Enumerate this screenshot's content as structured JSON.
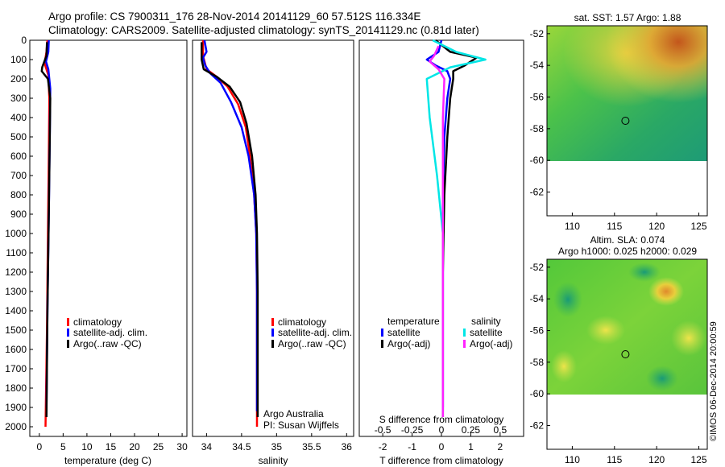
{
  "title": {
    "line1": "Argo profile: CS 7900311_176 28-Nov-2014 20141129_60 57.512S 116.334E",
    "line2": "Climatology: CARS2009. Satellite-adjusted climatology: synTS_20141129.nc (0.81d later)"
  },
  "credit": "©IMOS 06-Dec-2014 20:00:59",
  "colors": {
    "climatology": "#ff0000",
    "satellite_adj": "#0000ff",
    "argo": "#000000",
    "satellite_S": "#00e6e6",
    "argo_S": "#ff22ff"
  },
  "chart_data": [
    {
      "type": "line",
      "xlabel": "temperature (deg C)",
      "ylabel": "",
      "xlim": [
        -2,
        31
      ],
      "ylim": [
        2050,
        0
      ],
      "xticks": [
        0,
        5,
        10,
        15,
        20,
        25,
        30
      ],
      "yticks": [
        0,
        100,
        200,
        300,
        400,
        500,
        600,
        700,
        800,
        900,
        1000,
        1100,
        1200,
        1300,
        1400,
        1500,
        1600,
        1700,
        1800,
        1900,
        2000
      ],
      "series": [
        {
          "name": "climatology",
          "color": "#ff0000",
          "points": [
            [
              1.7,
              0
            ],
            [
              1.5,
              60
            ],
            [
              1.1,
              120
            ],
            [
              1.9,
              180
            ],
            [
              2.1,
              300
            ],
            [
              2.0,
              600
            ],
            [
              1.8,
              1000
            ],
            [
              1.6,
              1500
            ],
            [
              1.3,
              2000
            ]
          ]
        },
        {
          "name": "satellite-adj. clim.",
          "color": "#0000ff",
          "points": [
            [
              2.0,
              0
            ],
            [
              1.9,
              60
            ],
            [
              1.4,
              110
            ],
            [
              1.9,
              150
            ],
            [
              2.3,
              250
            ],
            [
              2.2,
              500
            ],
            [
              2.0,
              900
            ],
            [
              1.7,
              1400
            ],
            [
              1.5,
              1900
            ]
          ]
        },
        {
          "name": "Argo(..raw -QC)",
          "color": "#000000",
          "points": [
            [
              1.6,
              10
            ],
            [
              1.5,
              80
            ],
            [
              0.6,
              140
            ],
            [
              0.5,
              160
            ],
            [
              1.8,
              200
            ],
            [
              2.3,
              300
            ],
            [
              2.2,
              500
            ],
            [
              2.0,
              900
            ],
            [
              1.7,
              1400
            ],
            [
              1.5,
              1950
            ]
          ]
        }
      ],
      "legend": [
        "climatology",
        "satellite-adj. clim.",
        "Argo(..raw -QC)"
      ],
      "legend_position": "lower-right"
    },
    {
      "type": "line",
      "xlabel": "salinity",
      "ylabel": "",
      "xlim": [
        33.8,
        36.1
      ],
      "ylim": [
        2050,
        0
      ],
      "xticks": [
        34,
        34.5,
        35,
        35.5,
        36
      ],
      "xticklabels": [
        "34",
        "34.5",
        "35",
        "35.5",
        "36"
      ],
      "series": [
        {
          "name": "climatology",
          "color": "#ff0000",
          "points": [
            [
              33.95,
              0
            ],
            [
              33.95,
              80
            ],
            [
              34.0,
              150
            ],
            [
              34.15,
              190
            ],
            [
              34.3,
              240
            ],
            [
              34.45,
              330
            ],
            [
              34.56,
              450
            ],
            [
              34.62,
              600
            ],
            [
              34.68,
              800
            ],
            [
              34.71,
              1000
            ],
            [
              34.72,
              1300
            ],
            [
              34.72,
              1600
            ],
            [
              34.72,
              2000
            ]
          ]
        },
        {
          "name": "satellite-adj. clim.",
          "color": "#0000ff",
          "points": [
            [
              33.97,
              0
            ],
            [
              34.0,
              60
            ],
            [
              33.95,
              90
            ],
            [
              33.98,
              130
            ],
            [
              34.05,
              170
            ],
            [
              34.2,
              220
            ],
            [
              34.35,
              320
            ],
            [
              34.5,
              450
            ],
            [
              34.6,
              600
            ],
            [
              34.68,
              800
            ],
            [
              34.71,
              1000
            ],
            [
              34.72,
              1300
            ],
            [
              34.72,
              1600
            ],
            [
              34.72,
              1920
            ]
          ]
        },
        {
          "name": "Argo(..raw -QC)",
          "color": "#000000",
          "points": [
            [
              33.93,
              10
            ],
            [
              33.93,
              100
            ],
            [
              33.96,
              150
            ],
            [
              34.15,
              190
            ],
            [
              34.33,
              240
            ],
            [
              34.48,
              320
            ],
            [
              34.57,
              430
            ],
            [
              34.65,
              600
            ],
            [
              34.7,
              800
            ],
            [
              34.72,
              1000
            ],
            [
              34.73,
              1300
            ],
            [
              34.73,
              1600
            ],
            [
              34.73,
              1950
            ]
          ]
        }
      ],
      "legend": [
        "climatology",
        "satellite-adj. clim.",
        "Argo(..raw -QC)"
      ],
      "legend_position": "lower-right",
      "annotation": [
        "Argo Australia",
        "PI: Susan Wijffels"
      ]
    },
    {
      "type": "line",
      "xlabel": "T difference from climatology",
      "top_label": "S difference from climatology",
      "xlim": [
        -2.8,
        2.8
      ],
      "ylim": [
        2050,
        0
      ],
      "xticks": [
        -2,
        -1,
        0,
        1,
        2
      ],
      "top_ticks": [
        "-0.5",
        "-0.25",
        "0",
        "0.25",
        "0.5"
      ],
      "series": [
        {
          "name": "temperature satellite",
          "color": "#0000ff",
          "points": [
            [
              0,
              0
            ],
            [
              -0.1,
              60
            ],
            [
              -0.5,
              100
            ],
            [
              -0.2,
              130
            ],
            [
              0.2,
              160
            ],
            [
              0.3,
              200
            ],
            [
              0.2,
              300
            ],
            [
              0.1,
              500
            ],
            [
              0.05,
              800
            ],
            [
              0.05,
              1200
            ],
            [
              0.05,
              1600
            ],
            [
              0.05,
              1900
            ]
          ]
        },
        {
          "name": "temperature Argo(-adj)",
          "color": "#000000",
          "points": [
            [
              -0.2,
              0
            ],
            [
              0.3,
              60
            ],
            [
              1.2,
              90
            ],
            [
              0.8,
              130
            ],
            [
              0.4,
              160
            ],
            [
              0.4,
              200
            ],
            [
              0.3,
              300
            ],
            [
              0.2,
              500
            ],
            [
              0.1,
              800
            ],
            [
              0.05,
              1200
            ],
            [
              0.05,
              1600
            ],
            [
              0.05,
              1950
            ]
          ]
        },
        {
          "name": "salinity satellite",
          "color": "#00e6e6",
          "points": [
            [
              -0.3,
              0
            ],
            [
              0.5,
              60
            ],
            [
              1.5,
              100
            ],
            [
              0.3,
              140
            ],
            [
              -0.5,
              200
            ],
            [
              -0.4,
              400
            ],
            [
              -0.15,
              700
            ],
            [
              0.05,
              1000
            ],
            [
              0.05,
              1300
            ],
            [
              0.05,
              1600
            ],
            [
              0.05,
              1920
            ]
          ]
        },
        {
          "name": "salinity Argo(-adj)",
          "color": "#ff22ff",
          "points": [
            [
              -0.1,
              30
            ],
            [
              -0.25,
              80
            ],
            [
              -0.4,
              110
            ],
            [
              -0.1,
              150
            ],
            [
              0.1,
              200
            ],
            [
              0.05,
              400
            ],
            [
              0.05,
              700
            ],
            [
              0.05,
              1000
            ],
            [
              0.05,
              1300
            ],
            [
              0.05,
              1600
            ],
            [
              0.05,
              1950
            ]
          ]
        }
      ],
      "legend_titles": [
        "temperature",
        "salinity"
      ],
      "legend": [
        "satellite",
        "Argo(-adj)",
        "satellite",
        "Argo(-adj)"
      ],
      "legend_position": "lower"
    },
    {
      "type": "heatmap",
      "title": "sat. SST: 1.57  Argo: 1.88",
      "xlim": [
        107,
        126
      ],
      "ylim": [
        -63.5,
        -51.5
      ],
      "xticks": [
        110,
        115,
        120,
        125
      ],
      "yticks": [
        -52,
        -54,
        -56,
        -58,
        -60,
        -62
      ],
      "marker": [
        116.3,
        -57.5
      ]
    },
    {
      "type": "heatmap",
      "title": "Altim. SLA: 0.074",
      "subtitle": "Argo h1000: 0.025 h2000: 0.029",
      "xlim": [
        107,
        126
      ],
      "ylim": [
        -63.5,
        -51.5
      ],
      "xticks": [
        110,
        115,
        120,
        125
      ],
      "yticks": [
        -52,
        -54,
        -56,
        -58,
        -60,
        -62
      ],
      "marker": [
        116.3,
        -57.5
      ]
    }
  ]
}
